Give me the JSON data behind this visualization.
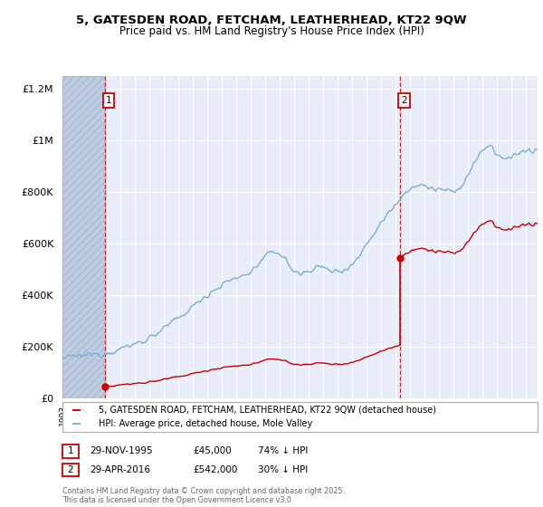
{
  "title_line1": "5, GATESDEN ROAD, FETCHAM, LEATHERHEAD, KT22 9QW",
  "title_line2": "Price paid vs. HM Land Registry's House Price Index (HPI)",
  "legend_property": "5, GATESDEN ROAD, FETCHAM, LEATHERHEAD, KT22 9QW (detached house)",
  "legend_hpi": "HPI: Average price, detached house, Mole Valley",
  "transaction1_date": "29-NOV-1995",
  "transaction1_price": "£45,000",
  "transaction1_hpi": "74% ↓ HPI",
  "transaction2_date": "29-APR-2016",
  "transaction2_price": "£542,000",
  "transaction2_hpi": "30% ↓ HPI",
  "footnote": "Contains HM Land Registry data © Crown copyright and database right 2025.\nThis data is licensed under the Open Government Licence v3.0.",
  "hpi_color": "#7bafd4",
  "property_color": "#cc0000",
  "background_color": "#e8edf8",
  "grid_color": "#ffffff",
  "ylim": [
    0,
    1250000
  ],
  "yticks": [
    0,
    200000,
    400000,
    600000,
    800000,
    1000000,
    1200000
  ],
  "ylabels": [
    "£0",
    "£200K",
    "£400K",
    "£600K",
    "£800K",
    "£1M",
    "£1.2M"
  ],
  "xlim_start": 1993.0,
  "xlim_end": 2025.8,
  "transaction1_year": 1995.92,
  "transaction2_year": 2016.33,
  "transaction1_price_val": 45000,
  "transaction2_price_val": 542000
}
